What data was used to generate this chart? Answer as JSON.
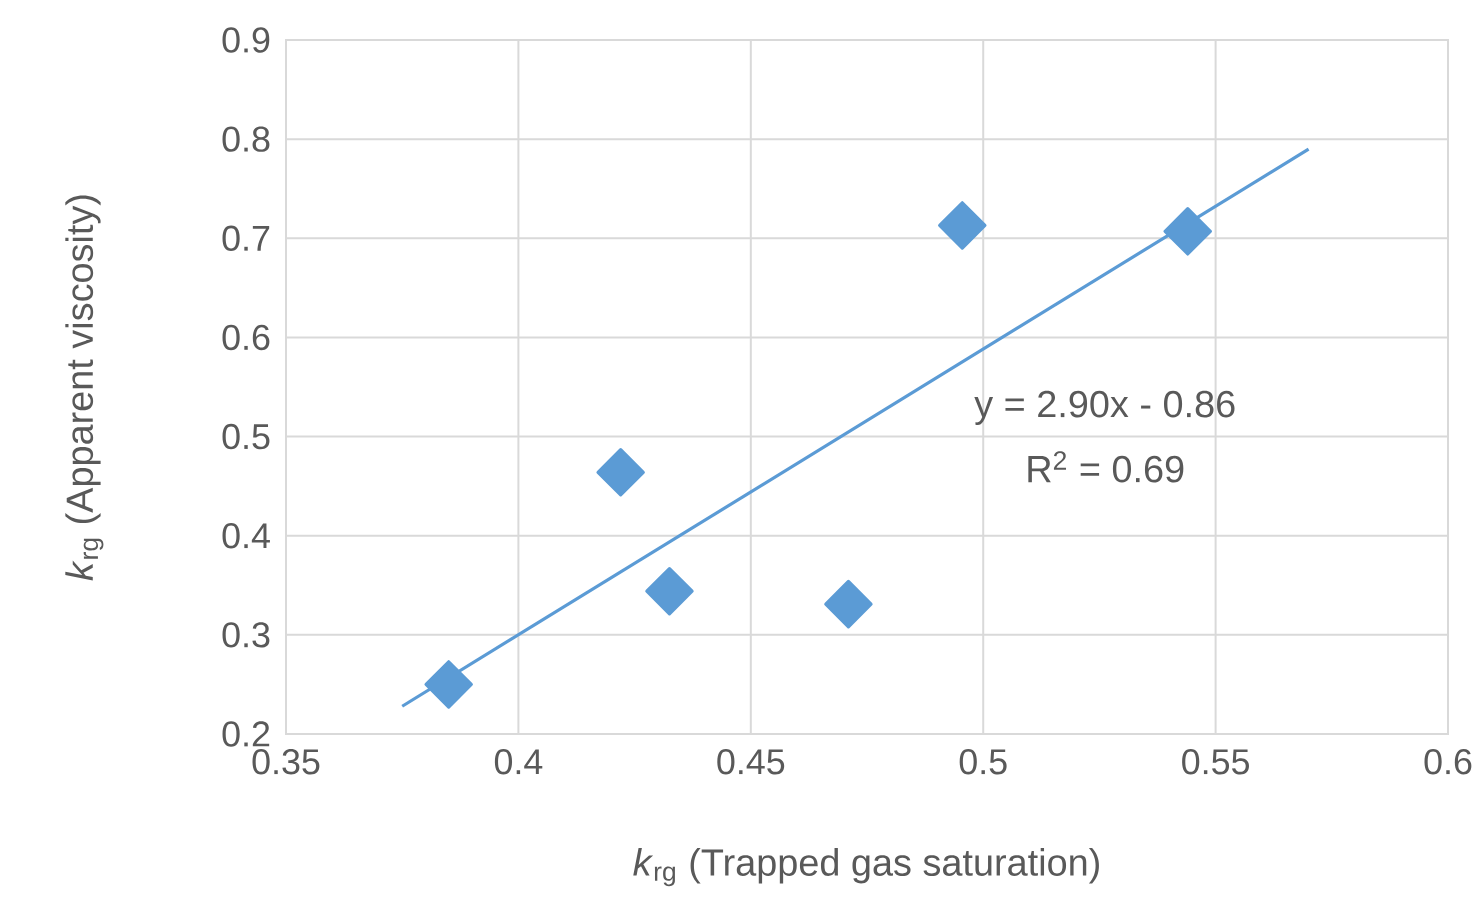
{
  "chart_data": {
    "type": "scatter",
    "xlabel": "*k*$_{rg}$ (Trapped gas saturation)",
    "ylabel": "*k*$_{rg}$ (Apparent viscosity)",
    "series": [
      {
        "color": "#5b9bd5",
        "marker": "diamond",
        "x": [
          0.385,
          0.422,
          0.4325,
          0.471,
          0.4955,
          0.544
        ],
        "values": [
          0.25,
          0.464,
          0.344,
          0.331,
          0.713,
          0.707
        ]
      },
      {
        "type": "line",
        "color": "#5b9bd5",
        "marker": "none",
        "line_style": "solid",
        "x": [
          0.375,
          0.57
        ],
        "values": [
          0.228,
          0.79
        ]
      }
    ],
    "annotations": [
      "y = 2.90x - 0.86",
      "R$^{2}$ = 0.69"
    ],
    "xlim": [
      0.35,
      0.6
    ],
    "xticks": [
      0.35,
      0.4,
      0.45,
      0.5,
      0.55,
      0.6
    ],
    "ylim": [
      0.2,
      0.9
    ],
    "yticks": [
      0.2,
      0.3,
      0.4,
      0.5,
      0.6,
      0.7,
      0.8,
      0.9
    ],
    "grid": true
  }
}
